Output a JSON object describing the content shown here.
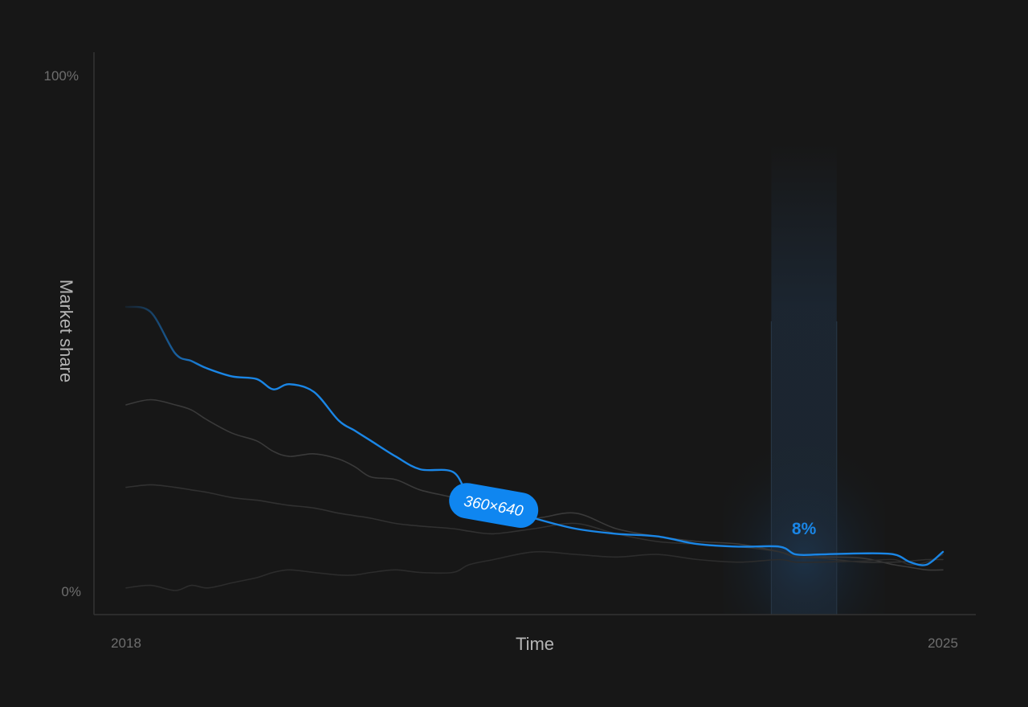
{
  "chart_data": {
    "type": "line",
    "title": "",
    "xlabel": "Time",
    "ylabel": "Market share",
    "x_tick_labels": [
      "2018",
      "2025"
    ],
    "y_tick_labels": [
      "100%",
      "0%"
    ],
    "xlim": [
      0,
      100
    ],
    "ylim": [
      0,
      100
    ],
    "grid": false,
    "x": [
      0,
      3,
      6,
      8,
      10,
      13,
      16,
      18,
      20,
      23,
      26,
      28,
      30,
      33,
      36,
      40,
      42,
      45,
      50,
      55,
      60,
      65,
      70,
      75,
      80,
      82,
      85,
      90,
      94,
      96,
      98,
      100
    ],
    "series": [
      {
        "role": "highlight",
        "color": "#1a86e6",
        "values": [
          55,
          54,
          46,
          44.5,
          43,
          41.5,
          41,
          39,
          40,
          38.5,
          33,
          31,
          29,
          26,
          23.5,
          23,
          18.5,
          16.5,
          14,
          12,
          11,
          10.5,
          9,
          8.5,
          8.5,
          7,
          7,
          7.2,
          7,
          5.5,
          5,
          7.5
        ]
      },
      {
        "role": "context",
        "color": "#3a3a3a",
        "values": [
          36,
          37,
          36,
          35,
          33,
          30.5,
          29,
          27,
          26,
          26.5,
          25.5,
          24,
          22,
          21.5,
          19.5,
          18,
          16.5,
          14.5,
          14,
          15,
          12,
          10.5,
          9.5,
          9,
          7.5,
          6.5,
          6.5,
          6.3,
          5,
          4.5,
          4,
          4
        ]
      },
      {
        "role": "context",
        "color": "#313131",
        "values": [
          20,
          20.5,
          20,
          19.5,
          19,
          18,
          17.5,
          17,
          16.5,
          16,
          15,
          14.5,
          14,
          13,
          12.5,
          12,
          11.5,
          11,
          12,
          13,
          11,
          9.5,
          9,
          8.5,
          7.5,
          6.5,
          6.3,
          5.5,
          5.5,
          5.7,
          6,
          6
        ]
      },
      {
        "role": "context",
        "color": "#2c2c2c",
        "values": [
          0.5,
          1,
          0,
          1,
          0.5,
          1.5,
          2.5,
          3.5,
          4,
          3.5,
          3,
          3,
          3.5,
          4,
          3.5,
          3.5,
          5,
          6,
          7.5,
          7,
          6.5,
          7,
          6,
          5.5,
          6,
          5.5,
          5.5,
          5.7,
          6,
          5,
          5.5,
          7
        ]
      }
    ],
    "highlight_band": {
      "x_range": [
        79,
        87
      ],
      "label": "8%"
    },
    "annotation": {
      "text": "360×640",
      "at_x": 45,
      "series_index": 0
    }
  }
}
